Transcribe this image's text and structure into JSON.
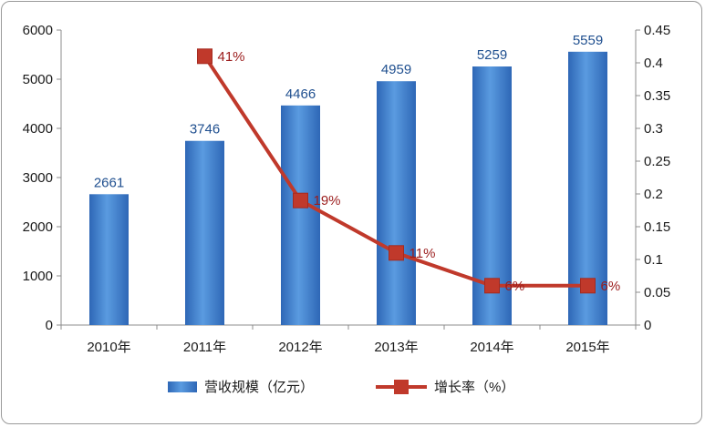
{
  "chart_data": {
    "type": "bar",
    "categories": [
      "2010年",
      "2011年",
      "2012年",
      "2013年",
      "2014年",
      "2015年"
    ],
    "series": [
      {
        "name": "营收规模（亿元）",
        "type": "bar",
        "axis": "left",
        "values": [
          2661,
          3746,
          4466,
          4959,
          5259,
          5559
        ],
        "labels": [
          "2661",
          "3746",
          "4466",
          "4959",
          "5259",
          "5559"
        ],
        "color": "#3f7dcc"
      },
      {
        "name": "增长率（%）",
        "type": "line",
        "axis": "right",
        "values": [
          null,
          0.41,
          0.19,
          0.11,
          0.06,
          0.06
        ],
        "labels": [
          "",
          "41%",
          "19%",
          "11%",
          "6%",
          "6%"
        ],
        "color": "#c0392b"
      }
    ],
    "y_left": {
      "min": 0,
      "max": 6000,
      "ticks": [
        "0",
        "1000",
        "2000",
        "3000",
        "4000",
        "5000",
        "6000"
      ]
    },
    "y_right": {
      "min": 0,
      "max": 0.45,
      "ticks": [
        "0",
        "0.05",
        "0.1",
        "0.15",
        "0.2",
        "0.25",
        "0.3",
        "0.35",
        "0.4",
        "0.45"
      ]
    },
    "grid": false,
    "legend_position": "bottom"
  }
}
